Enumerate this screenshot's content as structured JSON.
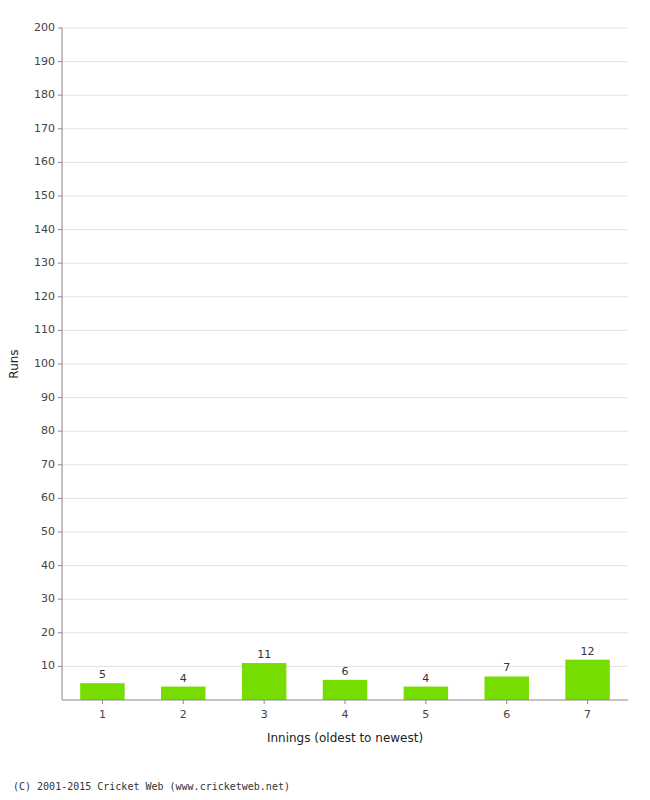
{
  "chart_data": {
    "type": "bar",
    "xlabel": "Innings (oldest to newest)",
    "ylabel": "Runs",
    "footer": "(C) 2001-2015 Cricket Web (www.cricketweb.net)",
    "categories": [
      "1",
      "2",
      "3",
      "4",
      "5",
      "6",
      "7"
    ],
    "values": [
      5,
      4,
      11,
      6,
      4,
      7,
      12
    ],
    "color": "#77dd00",
    "ylim": [
      0,
      200
    ],
    "yticks": [
      10,
      20,
      30,
      40,
      50,
      60,
      70,
      80,
      90,
      100,
      110,
      120,
      130,
      140,
      150,
      160,
      170,
      180,
      190,
      200
    ],
    "grid": true,
    "data_labels": true
  }
}
